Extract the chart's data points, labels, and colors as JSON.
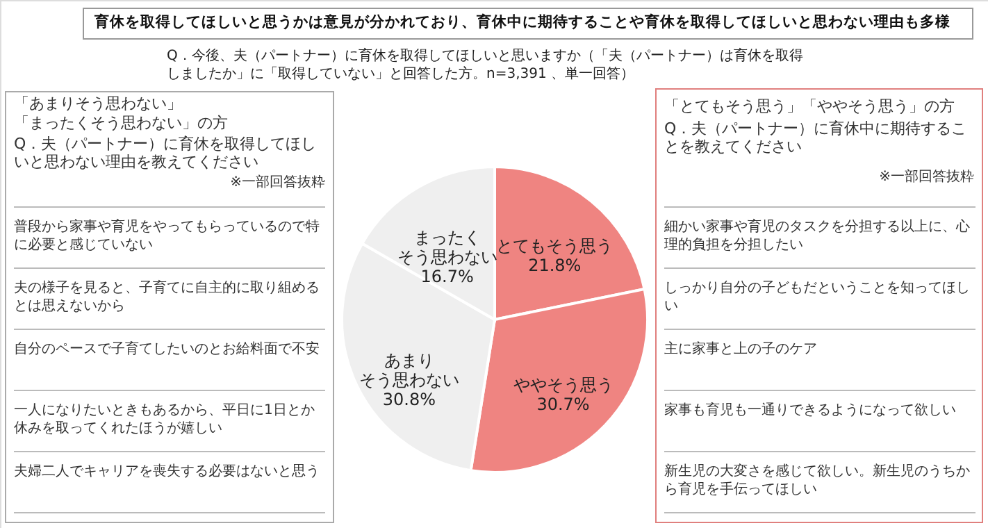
{
  "chart_data": {
    "type": "pie",
    "title": "育休を取得してほしいと思うかは意見が分かれており、育休中に期待することや育休を取得してほしいと思わない理由も多様",
    "subtitle": "Q．今後、夫（パートナー）に育休を取得してほしいと思いますか（「夫（パートナー）は育休を取得しましたか」に「取得していない」と回答した方。n=3,391 、単一回答）",
    "categories": [
      "とてもそう思う",
      "ややそう思う",
      "あまりそう思わない",
      "まったくそう思わない"
    ],
    "values": [
      21.8,
      30.7,
      30.8,
      16.7
    ],
    "colors": [
      "#ef8481",
      "#ef8481",
      "#efefef",
      "#efefef"
    ],
    "value_labels": [
      "21.8%",
      "30.7%",
      "30.8%",
      "16.7%"
    ],
    "annotations": [
      "「あまりそう思わない」",
      "「まったくそう思わない」の方",
      "Q．夫（パートナー）に育休を取得してほしいと思わない理由を教えてください",
      "※一部回答抜粋",
      "普段から家事や育児をやってもらっているので特に必要と感じていない",
      "夫の様子を見ると、子育てに自主的に取り組めるとは思えないから",
      "自分のペースで子育てしたいのとお給料面で不安",
      "一人になりたいときもあるから、平日に1日とか休みを取ってくれたほうが嬉しい",
      "夫婦二人でキャリアを喪失する必要はないと思う",
      "「とてもそう思う」「ややそう思う」の方",
      "Q．夫（パートナー）に育休中に期待することを教えてください",
      "※一部回答抜粋",
      "細かい家事や育児のタスクを分担する以上に、心理的負担を分担したい",
      "しっかり自分の子どもだということを知ってほしい",
      "主に家事と上の子のケア",
      "家事も育児も一通りできるようになって欲しい",
      "新生児の大変さを感じて欲しい。新生児のうちから育児を手伝ってほしい"
    ]
  }
}
